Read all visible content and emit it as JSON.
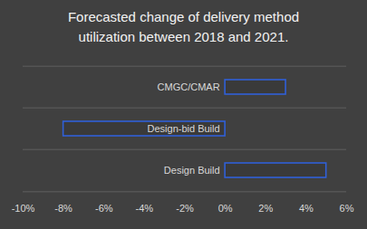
{
  "chart_data": {
    "type": "bar",
    "orientation": "horizontal",
    "title": "Forecasted change of delivery method utilization between 2018 and 2021.",
    "categories": [
      "CMGC/CMAR",
      "Design-bid Build",
      "Design Build"
    ],
    "values": [
      3,
      -8,
      5
    ],
    "color": "#3060d8",
    "xlim": [
      -10,
      6
    ],
    "xticks": [
      {
        "value": -10,
        "label": "-10%"
      },
      {
        "value": -8,
        "label": "-8%"
      },
      {
        "value": -6,
        "label": "-6%"
      },
      {
        "value": -4,
        "label": "-4%"
      },
      {
        "value": -2,
        "label": "-2%"
      },
      {
        "value": 0,
        "label": "0%"
      },
      {
        "value": 2,
        "label": "2%"
      },
      {
        "value": 4,
        "label": "4%"
      },
      {
        "value": 6,
        "label": "6%"
      }
    ],
    "grid": true
  }
}
